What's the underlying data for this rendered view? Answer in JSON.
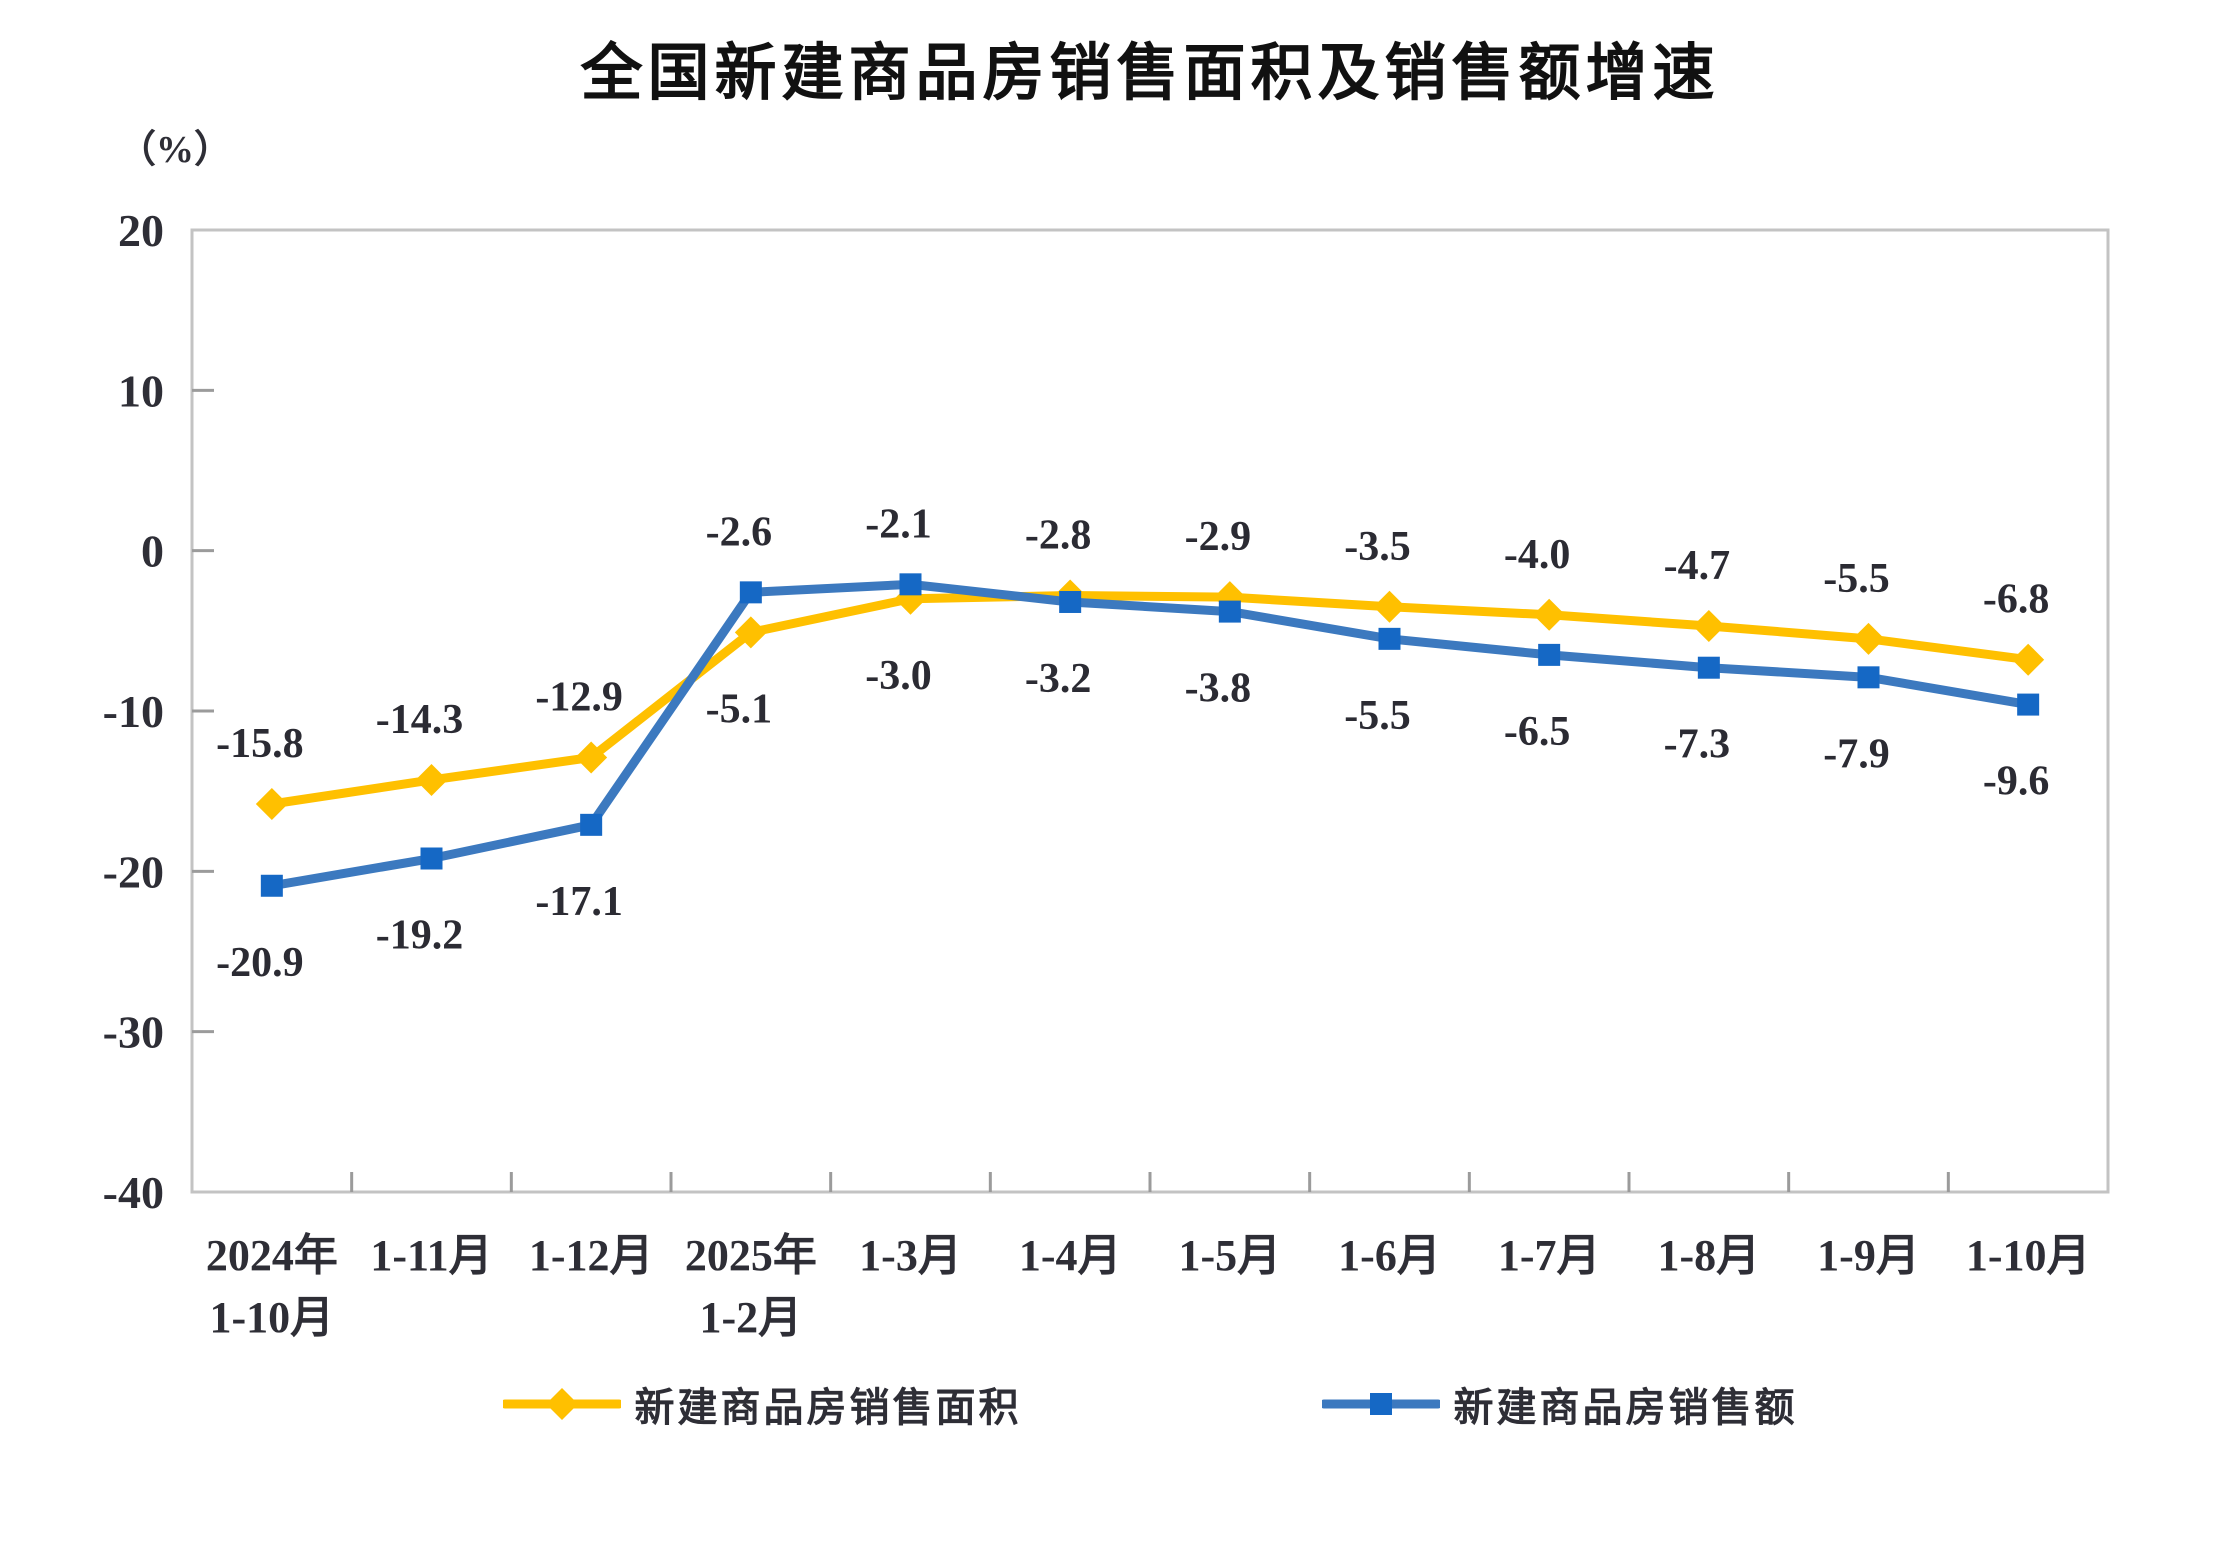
{
  "chart_data": {
    "type": "line",
    "title": "全国新建商品房销售面积及销售额增速",
    "unit_label": "（%）",
    "categories": [
      "2024年\n1-10月",
      "1-11月",
      "1-12月",
      "2025年\n1-2月",
      "1-3月",
      "1-4月",
      "1-5月",
      "1-6月",
      "1-7月",
      "1-8月",
      "1-9月",
      "1-10月"
    ],
    "y_axis": {
      "min": -40,
      "max": 20,
      "step": 10,
      "tick_labels": [
        "20",
        "10",
        "0",
        "-10",
        "-20",
        "-30",
        "-40"
      ]
    },
    "grid": false,
    "legend_position": "bottom",
    "series": [
      {
        "name": "新建商品房销售面积",
        "marker": "diamond",
        "color": "#FFC000",
        "marker_color": "#FFC000",
        "values": [
          -15.8,
          -14.3,
          -12.9,
          -5.1,
          -3.0,
          -2.8,
          -2.9,
          -3.5,
          -4.0,
          -4.7,
          -5.5,
          -6.8
        ],
        "labels": [
          "-15.8",
          "-14.3",
          "-12.9",
          "-5.1",
          "-3.0",
          "-2.8",
          "-2.9",
          "-3.5",
          "-4.0",
          "-4.7",
          "-5.5",
          "-6.8"
        ],
        "label_side": [
          "above",
          "above",
          "above",
          "below",
          "below",
          "above",
          "above",
          "above",
          "above",
          "above",
          "above",
          "above"
        ]
      },
      {
        "name": "新建商品房销售额",
        "marker": "square",
        "color": "#3C79BF",
        "marker_color": "#1568C5",
        "values": [
          -20.9,
          -19.2,
          -17.1,
          -2.6,
          -2.1,
          -3.2,
          -3.8,
          -5.5,
          -6.5,
          -7.3,
          -7.9,
          -9.6
        ],
        "labels": [
          "-20.9",
          "-19.2",
          "-17.1",
          "-2.6",
          "-2.1",
          "-3.2",
          "-3.8",
          "-5.5",
          "-6.5",
          "-7.3",
          "-7.9",
          "-9.6"
        ],
        "label_side": [
          "below",
          "below",
          "below",
          "above",
          "above",
          "below",
          "below",
          "below",
          "below",
          "below",
          "below",
          "below"
        ]
      }
    ],
    "colors": {
      "axis_border": "#C3C3C3",
      "tick": "#9B9B9B",
      "label_text": "#2b2b33",
      "axis_text": "#2e2e36"
    }
  }
}
